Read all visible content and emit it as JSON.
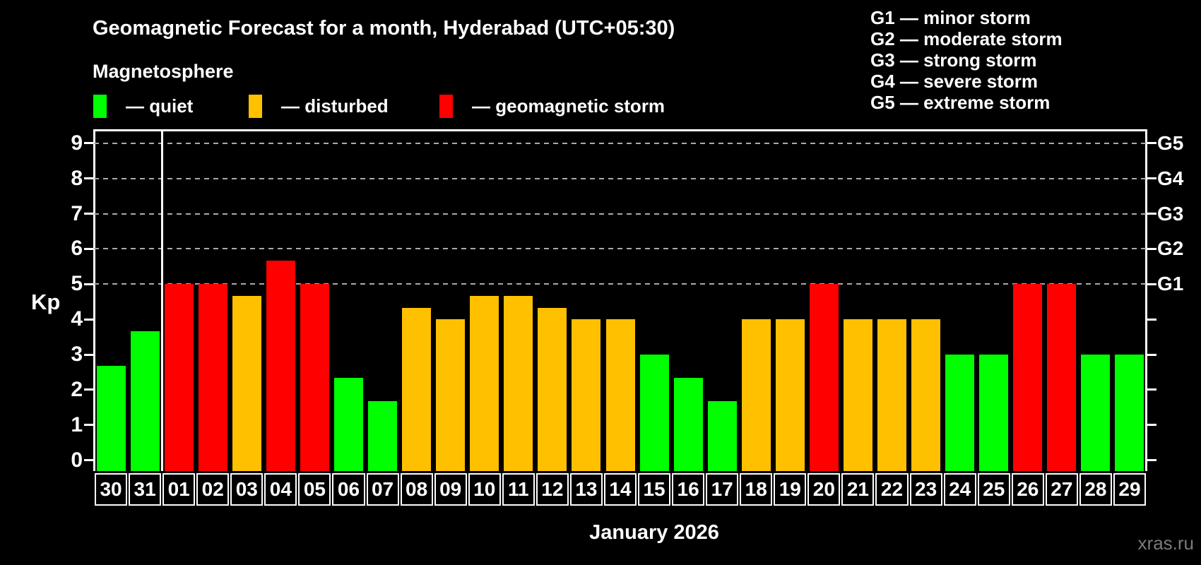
{
  "header": {
    "title": "Geomagnetic Forecast for a month, Hyderabad (UTC+05:30)",
    "subtitle": "Magnetosphere"
  },
  "legend": {
    "items": [
      {
        "label": "— quiet",
        "category": "quiet",
        "color": "#00ff00"
      },
      {
        "label": "— disturbed",
        "category": "disturbed",
        "color": "#ffc000"
      },
      {
        "label": "— geomagnetic storm",
        "category": "storm",
        "color": "#ff0000"
      }
    ]
  },
  "g_legend": {
    "items": [
      "G1 — minor storm",
      "G2 — moderate storm",
      "G3 — strong storm",
      "G4 — severe storm",
      "G5 — extreme storm"
    ]
  },
  "axes": {
    "y_label": "Kp",
    "y_ticks": [
      0,
      1,
      2,
      3,
      4,
      5,
      6,
      7,
      8,
      9
    ],
    "gridlines_at": [
      5,
      6,
      7,
      8,
      9
    ],
    "right_labels": [
      {
        "label": "G1",
        "value": 5
      },
      {
        "label": "G2",
        "value": 6
      },
      {
        "label": "G3",
        "value": 7
      },
      {
        "label": "G4",
        "value": 8
      },
      {
        "label": "G5",
        "value": 9
      }
    ]
  },
  "x_axis": {
    "month_label": "January 2026"
  },
  "watermark": "xras.ru",
  "chart_data": {
    "type": "bar",
    "title": "Geomagnetic Forecast for a month, Hyderabad (UTC+05:30)",
    "xlabel": "January 2026",
    "ylabel": "Kp",
    "ylim": [
      0,
      9
    ],
    "grid": "horizontal dashed lines at Kp 5,6,7,8,9 (storm levels G1–G5)",
    "legend_position": "top-left (quiet/disturbed/storm) and top-right (G1–G5 scale)",
    "separator_after_index": 1,
    "categories": [
      "30",
      "31",
      "01",
      "02",
      "03",
      "04",
      "05",
      "06",
      "07",
      "08",
      "09",
      "10",
      "11",
      "12",
      "13",
      "14",
      "15",
      "16",
      "17",
      "18",
      "19",
      "20",
      "21",
      "22",
      "23",
      "24",
      "25",
      "26",
      "27",
      "28",
      "29"
    ],
    "values": [
      2.67,
      3.67,
      5,
      5,
      4.67,
      5.67,
      5,
      2.33,
      1.67,
      4.33,
      4,
      4.67,
      4.67,
      4.33,
      4,
      4,
      3,
      2.33,
      1.67,
      4,
      4,
      5,
      4,
      4,
      4,
      3,
      3,
      5,
      5,
      3,
      3
    ],
    "levels": [
      "quiet",
      "quiet",
      "storm",
      "storm",
      "disturbed",
      "storm",
      "storm",
      "quiet",
      "quiet",
      "disturbed",
      "disturbed",
      "disturbed",
      "disturbed",
      "disturbed",
      "disturbed",
      "disturbed",
      "quiet",
      "quiet",
      "quiet",
      "disturbed",
      "disturbed",
      "storm",
      "disturbed",
      "disturbed",
      "disturbed",
      "quiet",
      "quiet",
      "storm",
      "storm",
      "quiet",
      "quiet"
    ]
  }
}
